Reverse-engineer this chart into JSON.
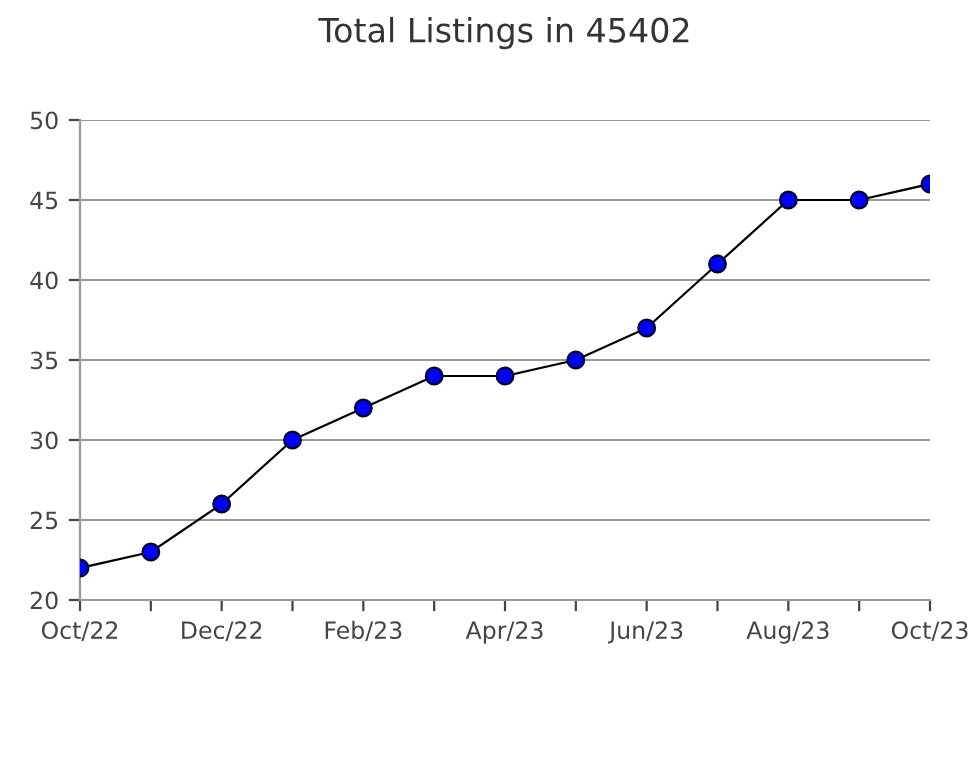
{
  "chart_data": {
    "type": "line",
    "title": "Total Listings in 45402",
    "categories": [
      "Oct/22",
      null,
      "Dec/22",
      null,
      "Feb/23",
      null,
      "Apr/23",
      null,
      "Jun/23",
      null,
      "Aug/23",
      null,
      "Oct/23"
    ],
    "series": [
      {
        "color": "#0000ff",
        "values": [
          22,
          23,
          26,
          30,
          32,
          34,
          34,
          35,
          37,
          41,
          45,
          45,
          46
        ]
      }
    ],
    "ylim": [
      20,
      50
    ],
    "yticks": [
      20,
      25,
      30,
      35,
      40,
      45,
      50
    ],
    "grid": "y",
    "marker": "circle",
    "line_style": "solid",
    "legend": false
  }
}
